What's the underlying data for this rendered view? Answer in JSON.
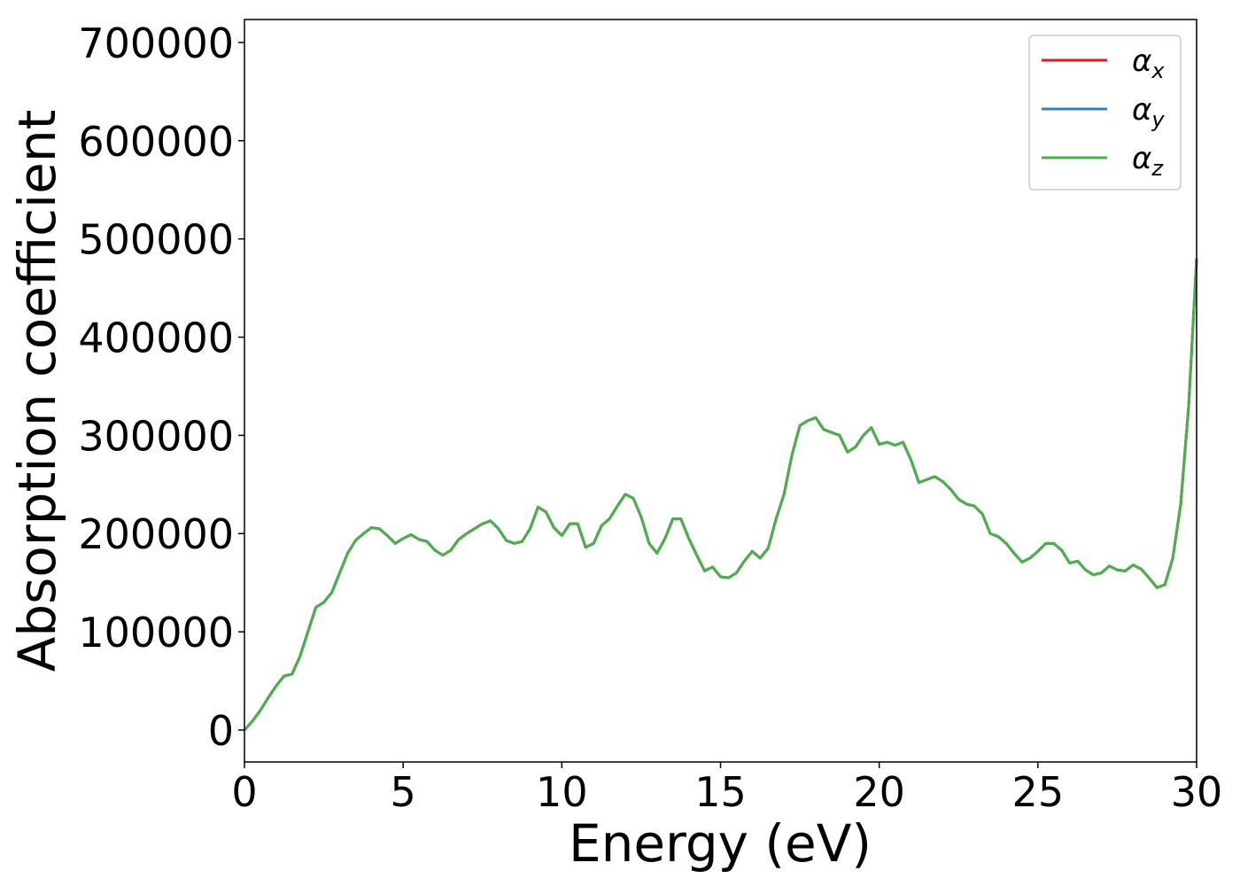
{
  "chart_data": {
    "type": "line",
    "xlabel": "Energy (eV)",
    "ylabel": "Absorption coefficient",
    "xlim": [
      0,
      30
    ],
    "xticks": [
      0,
      5,
      10,
      15,
      20,
      25,
      30
    ],
    "ylim": [
      -32500,
      723400
    ],
    "yticks": [
      0,
      100000,
      200000,
      300000,
      400000,
      500000,
      600000,
      700000
    ],
    "legend": "upper right",
    "x": [
      0,
      0.25,
      0.5,
      0.75,
      1,
      1.25,
      1.5,
      1.75,
      2,
      2.25,
      2.5,
      2.75,
      3,
      3.25,
      3.5,
      3.75,
      4,
      4.25,
      4.5,
      4.75,
      5,
      5.25,
      5.5,
      5.75,
      6,
      6.25,
      6.5,
      6.75,
      7,
      7.25,
      7.5,
      7.75,
      8,
      8.25,
      8.5,
      8.75,
      9,
      9.25,
      9.5,
      9.75,
      10,
      10.25,
      10.5,
      10.75,
      11,
      11.25,
      11.5,
      11.75,
      12,
      12.25,
      12.5,
      12.75,
      13,
      13.25,
      13.5,
      13.75,
      14,
      14.25,
      14.5,
      14.75,
      15,
      15.25,
      15.5,
      15.75,
      16,
      16.25,
      16.5,
      16.75,
      17,
      17.25,
      17.5,
      17.75,
      18,
      18.25,
      18.5,
      18.75,
      19,
      19.25,
      19.5,
      19.75,
      20,
      20.25,
      20.5,
      20.75,
      21,
      21.25,
      21.5,
      21.75,
      22,
      22.25,
      22.5,
      22.75,
      23,
      23.25,
      23.5,
      23.75,
      24,
      24.25,
      24.5,
      24.75,
      25,
      25.25,
      25.5,
      25.75,
      26,
      26.25,
      26.5,
      26.75,
      27,
      27.25,
      27.5,
      27.75,
      28,
      28.25,
      28.5,
      28.75,
      29,
      29.25,
      29.5,
      29.75,
      30
    ],
    "series": [
      {
        "name": "αx",
        "color": "#e41a1c",
        "values": [
          0,
          9000,
          20000,
          33000,
          45000,
          55000,
          57000,
          75000,
          100000,
          125000,
          130000,
          140000,
          160000,
          180000,
          193000,
          200000,
          206000,
          205000,
          198000,
          190000,
          195000,
          199000,
          194000,
          192000,
          183000,
          178000,
          183000,
          194000,
          200000,
          205000,
          210000,
          213000,
          205000,
          193000,
          190000,
          192000,
          205000,
          227000,
          222000,
          206000,
          198000,
          210000,
          210000,
          186000,
          190000,
          208000,
          215000,
          228000,
          240000,
          236000,
          217000,
          190000,
          180000,
          195000,
          215000,
          215000,
          195000,
          178000,
          162000,
          166000,
          156000,
          155000,
          160000,
          172000,
          182000,
          175000,
          185000,
          215000,
          240000,
          280000,
          310000,
          315000,
          318000,
          306000,
          303000,
          300000,
          283000,
          288000,
          300000,
          308000,
          291000,
          293000,
          290000,
          293000,
          275000,
          252000,
          255000,
          258000,
          253000,
          245000,
          235000,
          230000,
          228000,
          220000,
          200000,
          197000,
          190000,
          180000,
          171000,
          175000,
          182000,
          190000,
          190000,
          183000,
          170000,
          172000,
          163000,
          158000,
          160000,
          167000,
          163000,
          162000,
          168000,
          164000,
          155000,
          145000,
          148000,
          175000,
          230000,
          330000,
          480000
        ]
      },
      {
        "name": "αy",
        "color": "#377eb8",
        "values": [
          0,
          9000,
          20000,
          33000,
          45000,
          55000,
          57000,
          75000,
          100000,
          125000,
          130000,
          140000,
          160000,
          180000,
          193000,
          200000,
          206000,
          205000,
          198000,
          190000,
          195000,
          199000,
          194000,
          192000,
          183000,
          178000,
          183000,
          194000,
          200000,
          205000,
          210000,
          213000,
          205000,
          193000,
          190000,
          192000,
          205000,
          227000,
          222000,
          206000,
          198000,
          210000,
          210000,
          186000,
          190000,
          208000,
          215000,
          228000,
          240000,
          236000,
          217000,
          190000,
          180000,
          195000,
          215000,
          215000,
          195000,
          178000,
          162000,
          166000,
          156000,
          155000,
          160000,
          172000,
          182000,
          175000,
          185000,
          215000,
          240000,
          280000,
          310000,
          315000,
          318000,
          306000,
          303000,
          300000,
          283000,
          288000,
          300000,
          308000,
          291000,
          293000,
          290000,
          293000,
          275000,
          252000,
          255000,
          258000,
          253000,
          245000,
          235000,
          230000,
          228000,
          220000,
          200000,
          197000,
          190000,
          180000,
          171000,
          175000,
          182000,
          190000,
          190000,
          183000,
          170000,
          172000,
          163000,
          158000,
          160000,
          167000,
          163000,
          162000,
          168000,
          164000,
          155000,
          145000,
          148000,
          175000,
          230000,
          330000,
          480000
        ]
      },
      {
        "name": "αz",
        "color": "#4daf4a",
        "values": [
          0,
          9000,
          20000,
          33000,
          45000,
          55000,
          57000,
          75000,
          100000,
          125000,
          130000,
          140000,
          160000,
          180000,
          193000,
          200000,
          206000,
          205000,
          198000,
          190000,
          195000,
          199000,
          194000,
          192000,
          183000,
          178000,
          183000,
          194000,
          200000,
          205000,
          210000,
          213000,
          205000,
          193000,
          190000,
          192000,
          205000,
          227000,
          222000,
          206000,
          198000,
          210000,
          210000,
          186000,
          190000,
          208000,
          215000,
          228000,
          240000,
          236000,
          217000,
          190000,
          180000,
          195000,
          215000,
          215000,
          195000,
          178000,
          162000,
          166000,
          156000,
          155000,
          160000,
          172000,
          182000,
          175000,
          185000,
          215000,
          240000,
          280000,
          310000,
          315000,
          318000,
          306000,
          303000,
          300000,
          283000,
          288000,
          300000,
          308000,
          291000,
          293000,
          290000,
          293000,
          275000,
          252000,
          255000,
          258000,
          253000,
          245000,
          235000,
          230000,
          228000,
          220000,
          200000,
          197000,
          190000,
          180000,
          171000,
          175000,
          182000,
          190000,
          190000,
          183000,
          170000,
          172000,
          163000,
          158000,
          160000,
          167000,
          163000,
          162000,
          168000,
          164000,
          155000,
          145000,
          148000,
          175000,
          230000,
          330000,
          480000
        ]
      }
    ]
  }
}
